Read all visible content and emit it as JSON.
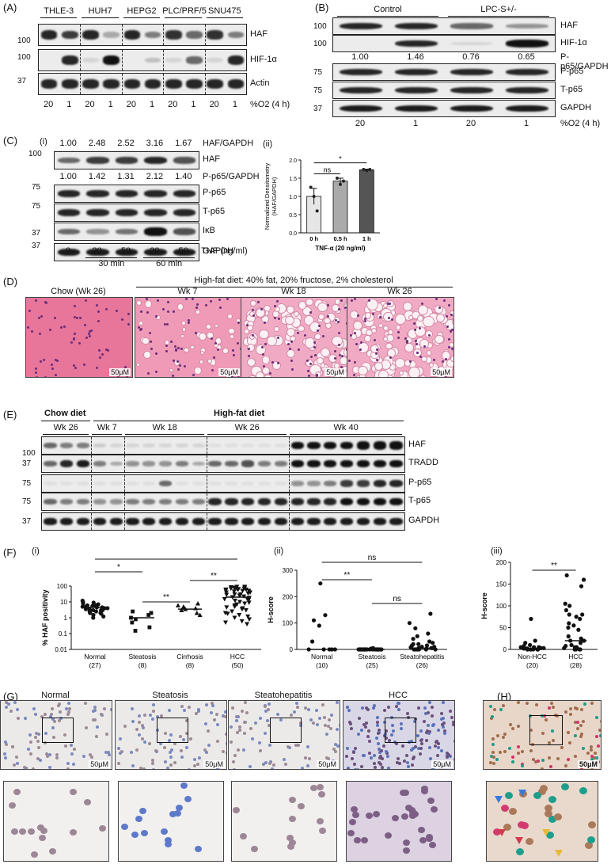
{
  "panelA": {
    "label": "(A)",
    "cells": [
      "THLE-3",
      "HUH7",
      "HEPG2",
      "PLC/PRF/5",
      "SNU475"
    ],
    "rows": [
      "HAF",
      "HIF-1α",
      "Actin"
    ],
    "mw": [
      "100",
      "100",
      "37"
    ],
    "o2": [
      "20",
      "1",
      "20",
      "1",
      "20",
      "1",
      "20",
      "1",
      "20",
      "1"
    ],
    "o2label": "%O2 (4 h)"
  },
  "panelB": {
    "label": "(B)",
    "groups": [
      "Control",
      "LPC-S+/-"
    ],
    "rows": [
      "HAF",
      "HIF-1α",
      "P-p65",
      "T-p65",
      "GAPDH"
    ],
    "mw": [
      "100",
      "100",
      "75",
      "75",
      "37"
    ],
    "ratio_label": "P-p65/GAPDH",
    "ratios": [
      "1.00",
      "1.46",
      "0.76",
      "0.65"
    ],
    "o2": [
      "20",
      "1",
      "20",
      "1"
    ],
    "o2label": "%O2 (4 h)"
  },
  "panelC": {
    "label": "(C)",
    "sub_i": "(i)",
    "sub_ii": "(ii)",
    "haf_label": "HAF/GAPDH",
    "haf_ratios": [
      "1.00",
      "2.48",
      "2.52",
      "3.16",
      "1.67"
    ],
    "pp65_label": "P-p65/GAPDH",
    "pp65_ratios": [
      "1.00",
      "1.42",
      "1.31",
      "2.12",
      "1.40"
    ],
    "rows": [
      "HAF",
      "P-p65",
      "T-p65",
      "IκB",
      "GAPDH"
    ],
    "mw": [
      "100",
      "75",
      "75",
      "37",
      "37"
    ],
    "tnf": [
      "0",
      "20",
      "50",
      "20",
      "50"
    ],
    "tnf_label": "TNF (ng/ml)",
    "time": [
      "30 min",
      "60 min"
    ]
  },
  "chart_data": [
    {
      "id": "C-ii",
      "type": "bar",
      "categories": [
        "0 h",
        "0.5 h",
        "1 h"
      ],
      "values": [
        1.0,
        1.42,
        1.73
      ],
      "errors": [
        0.22,
        0.08,
        0.02
      ],
      "points": [
        [
          1.25,
          1.0,
          0.6
        ],
        [
          1.5,
          1.33,
          1.42
        ],
        [
          1.74,
          1.71,
          1.74
        ]
      ],
      "colors": [
        "#e6e6e6",
        "#aaaaaa",
        "#555555"
      ],
      "xlabel": "TNF-α (20 ng/ml)",
      "ylabel": "Normalized Densitometry\n(HAF/GAPDH)",
      "ylim": [
        0,
        2.0
      ],
      "yticks": [
        "0.0",
        "0.5",
        "1.0",
        "1.5",
        "2.0"
      ],
      "sig": [
        {
          "from": 0,
          "to": 1,
          "text": "ns"
        },
        {
          "from": 0,
          "to": 2,
          "text": "*"
        }
      ]
    },
    {
      "id": "F-i",
      "type": "scatter",
      "categories": [
        "Normal",
        "Steatosis",
        "Cirrhosis",
        "HCC"
      ],
      "counts": [
        "(27)",
        "(8)",
        "(8)",
        "(50)"
      ],
      "ylabel": "% HAF positivity",
      "scale": "log",
      "ylim": [
        0.01,
        100
      ],
      "yticks": [
        "0.01",
        "0.1",
        "1",
        "10",
        "100"
      ],
      "medians": [
        4.5,
        1.0,
        3.5,
        20
      ],
      "points": [
        [
          9,
          7,
          6,
          5.5,
          5,
          5,
          4.5,
          4.5,
          4,
          4,
          3.5,
          3.5,
          3,
          3,
          2.5,
          2.5,
          2,
          2,
          1.8,
          1.5,
          1.2,
          1,
          6,
          8,
          10,
          12,
          3
        ],
        [
          2.5,
          2,
          1.5,
          1,
          0.8,
          0.5,
          0.25,
          0.15
        ],
        [
          8,
          6,
          5,
          4,
          3.5,
          3,
          2,
          1.5
        ],
        [
          90,
          85,
          80,
          80,
          75,
          70,
          70,
          65,
          60,
          60,
          55,
          50,
          50,
          45,
          40,
          40,
          35,
          30,
          30,
          28,
          25,
          22,
          20,
          18,
          16,
          15,
          14,
          12,
          10,
          9,
          8,
          7,
          6,
          5,
          4.5,
          4,
          3.5,
          3,
          2.5,
          2,
          1.8,
          1.5,
          1.2,
          1,
          0.8,
          0.6,
          0.5,
          0.4,
          90,
          60
        ]
      ],
      "sig": [
        {
          "from": 0,
          "to": 1,
          "text": "*"
        },
        {
          "from": 1,
          "to": 2,
          "text": "**"
        },
        {
          "from": 2,
          "to": 3,
          "text": "**"
        },
        {
          "from": 0,
          "to": 3,
          "text": "****"
        }
      ]
    },
    {
      "id": "F-ii",
      "type": "scatter",
      "categories": [
        "Normal",
        "Steatosis",
        "Steatohepatitis"
      ],
      "counts": [
        "(10)",
        "(25)",
        "(26)"
      ],
      "ylabel": "H-score",
      "ylim": [
        0,
        300
      ],
      "yticks": [
        "0",
        "100",
        "200",
        "300"
      ],
      "medians": [
        0,
        0,
        5
      ],
      "points": [
        [
          250,
          130,
          110,
          90,
          30,
          0,
          0,
          0,
          0,
          0
        ],
        [
          0,
          0,
          0,
          0,
          0,
          0,
          0,
          0,
          0,
          0,
          0,
          0,
          0,
          0,
          0,
          0,
          0,
          0,
          0,
          0,
          0,
          5,
          3,
          0,
          0
        ],
        [
          135,
          100,
          80,
          60,
          50,
          40,
          30,
          25,
          20,
          20,
          15,
          15,
          10,
          10,
          8,
          5,
          5,
          5,
          3,
          0,
          0,
          0,
          0,
          0,
          0,
          0
        ]
      ],
      "sig": [
        {
          "from": 0,
          "to": 1,
          "text": "**"
        },
        {
          "from": 0,
          "to": 2,
          "text": "ns"
        },
        {
          "from": 1,
          "to": 2,
          "text": "ns"
        }
      ]
    },
    {
      "id": "F-iii",
      "type": "scatter",
      "categories": [
        "Non-HCC",
        "HCC"
      ],
      "counts": [
        "(20)",
        "(28)"
      ],
      "ylabel": "H-score",
      "ylim": [
        0,
        200
      ],
      "yticks": [
        "0",
        "50",
        "100",
        "150",
        "200"
      ],
      "medians": [
        2,
        20
      ],
      "points": [
        [
          70,
          20,
          15,
          10,
          8,
          5,
          5,
          5,
          3,
          3,
          2,
          2,
          0,
          0,
          0,
          0,
          0,
          0,
          0,
          0
        ],
        [
          170,
          160,
          145,
          105,
          100,
          90,
          80,
          80,
          75,
          70,
          60,
          55,
          50,
          45,
          30,
          25,
          20,
          20,
          15,
          10,
          8,
          5,
          5,
          3,
          0,
          0,
          0,
          0
        ]
      ],
      "sig": [
        {
          "from": 0,
          "to": 1,
          "text": "**"
        }
      ]
    }
  ],
  "panelD": {
    "label": "(D)",
    "diet_title": "High-fat diet: 40% fat, 20% fructose, 2% cholesterol",
    "images": [
      "Chow (Wk 26)",
      "Wk 7",
      "Wk 18",
      "Wk 26"
    ],
    "scale": "50μM"
  },
  "panelE": {
    "label": "(E)",
    "chow": "Chow diet",
    "hfd": "High-fat diet",
    "weeks": [
      "Wk 26",
      "Wk 7",
      "Wk 18",
      "Wk 26",
      "Wk 40"
    ],
    "rows": [
      "HAF",
      "TRADD",
      "P-p65",
      "T-p65",
      "GAPDH"
    ],
    "mw": [
      "100",
      "37",
      "75",
      "75",
      "37"
    ]
  },
  "panelF": {
    "label": "(F)",
    "sub": [
      "(i)",
      "(ii)",
      "(iii)"
    ]
  },
  "panelG": {
    "label": "(G)",
    "images": [
      "Normal",
      "Steatosis",
      "Steatohepatitis",
      "HCC"
    ],
    "scale": "50μM"
  },
  "panelH": {
    "label": "(H)",
    "scale": "50μM"
  }
}
